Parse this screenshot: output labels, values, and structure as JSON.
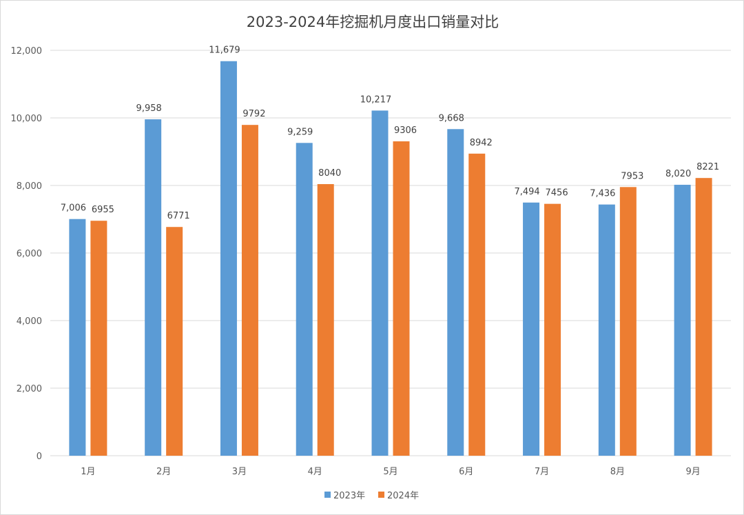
{
  "chart_data": {
    "type": "bar",
    "title": "2023-2024年挖掘机月度出口销量对比",
    "categories": [
      "1月",
      "2月",
      "3月",
      "4月",
      "5月",
      "6月",
      "7月",
      "8月",
      "9月"
    ],
    "series": [
      {
        "name": "2023年",
        "color": "#5b9bd5",
        "values": [
          7006,
          9958,
          11679,
          9259,
          10217,
          9668,
          7494,
          7436,
          8020
        ],
        "labels": [
          "7,006",
          "9,958",
          "11,679",
          "9,259",
          "10,217",
          "9,668",
          "7,494",
          "7,436",
          "8,020"
        ]
      },
      {
        "name": "2024年",
        "color": "#ed7d31",
        "values": [
          6955,
          6771,
          9792,
          8040,
          9306,
          8942,
          7456,
          7953,
          8221
        ],
        "labels": [
          "6955",
          "6771",
          "9792",
          "8040",
          "9306",
          "8942",
          "7456",
          "7953",
          "8221"
        ]
      }
    ],
    "ylim": [
      0,
      12000
    ],
    "yticks": [
      "0",
      "2,000",
      "4,000",
      "6,000",
      "8,000",
      "10,000",
      "12,000"
    ],
    "ytick_values": [
      0,
      2000,
      4000,
      6000,
      8000,
      10000,
      12000
    ],
    "grid": true,
    "legend_position": "bottom"
  }
}
